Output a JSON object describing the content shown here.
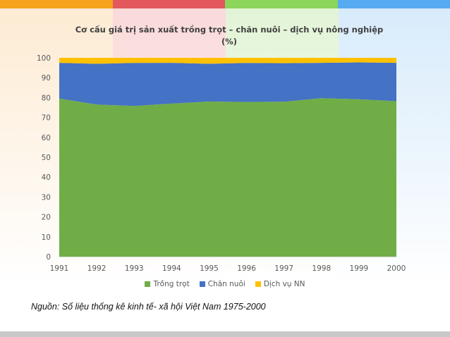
{
  "chart_data": {
    "type": "area",
    "stacked": true,
    "title_line1": "Cơ cấu giá trị sản xuất trồng trọt – chăn nuôi – dịch vụ nông nghiệp",
    "title_line2": "(%)",
    "x": [
      "1991",
      "1992",
      "1993",
      "1994",
      "1995",
      "1996",
      "1997",
      "1998",
      "1999",
      "2000"
    ],
    "series": [
      {
        "name": "Trồng trọt",
        "color": "#70ad47",
        "values": [
          79.5,
          76.5,
          75.8,
          77.0,
          78.0,
          77.8,
          77.9,
          79.7,
          79.2,
          78.2
        ]
      },
      {
        "name": "Chăn nuôi",
        "color": "#4472c4",
        "values": [
          18.0,
          20.5,
          21.6,
          20.5,
          19.0,
          19.6,
          19.4,
          17.8,
          18.5,
          19.3
        ]
      },
      {
        "name": "Dịch vụ NN",
        "color": "#ffc000",
        "values": [
          2.5,
          3.0,
          2.6,
          2.5,
          3.0,
          2.6,
          2.7,
          2.5,
          2.3,
          2.5
        ]
      }
    ],
    "ylim": [
      0,
      100
    ],
    "yticks": [
      "0",
      "10",
      "20",
      "30",
      "40",
      "50",
      "60",
      "70",
      "80",
      "90",
      "100"
    ],
    "legend_position": "bottom"
  },
  "source_note": "Nguồn: Số liệu thống kê kinh tế- xã hội Việt Nam 1975-2000",
  "decor": {
    "top_colors": [
      "#f7a21b",
      "#e2585d",
      "#8bd55a",
      "#55aaf0"
    ],
    "bg_colors": [
      "#fdebd3",
      "#fad9d9",
      "#e2f4d6",
      "#d8ebfb"
    ]
  }
}
